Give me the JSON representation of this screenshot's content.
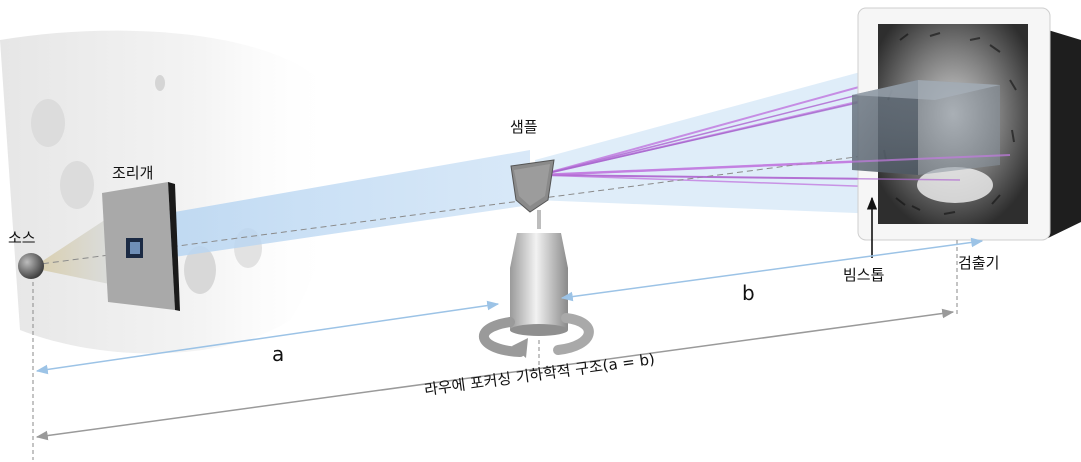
{
  "labels": {
    "source": "소스",
    "aperture": "조리개",
    "sample": "샘플",
    "detector": "검출기",
    "beamstop": "빔스톱",
    "a": "a",
    "b": "b",
    "geometry": "라우에 포커싱 기하학적 구조(a = b)"
  },
  "colors": {
    "beam_blue": "#b9d6f2",
    "beam_purple": "#c27be0",
    "arrow_blue": "#9cc3e6",
    "arrow_gray": "#9a9a9a"
  }
}
